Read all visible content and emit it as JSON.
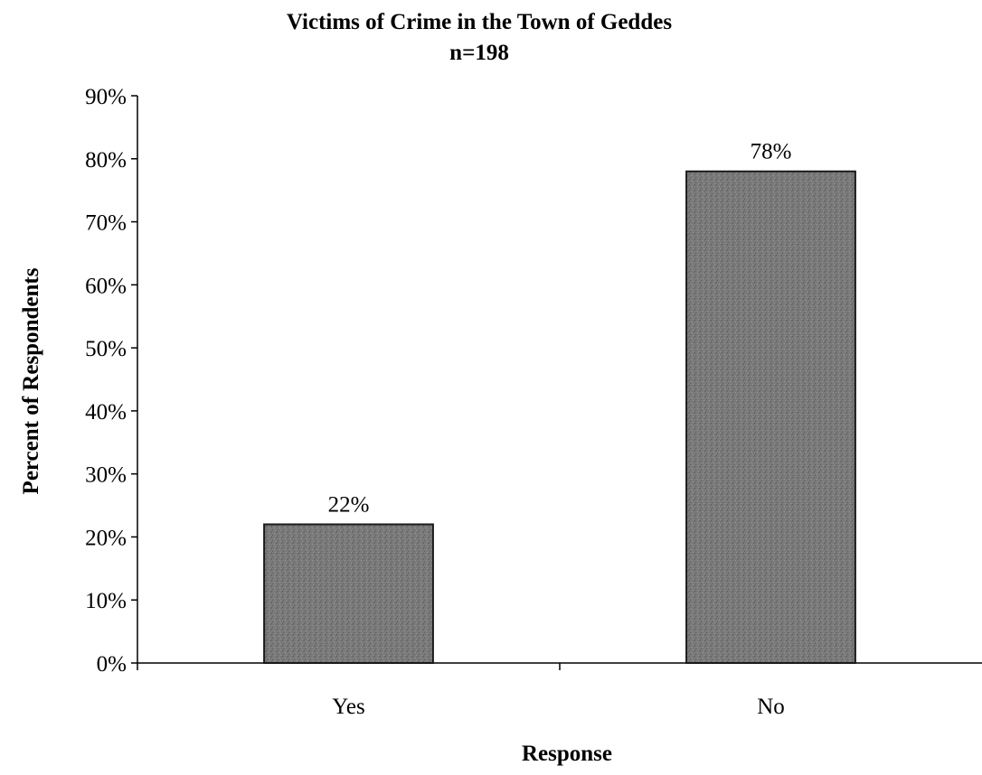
{
  "chart_data": {
    "type": "bar",
    "title": "Victims of Crime in the Town of Geddes",
    "subtitle": "n=198",
    "xlabel": "Response",
    "ylabel": "Percent of Respondents",
    "categories": [
      "Yes",
      "No"
    ],
    "values": [
      22,
      78
    ],
    "data_labels": [
      "22%",
      "78%"
    ],
    "ylim": [
      0,
      90
    ],
    "yticks": [
      0,
      10,
      20,
      30,
      40,
      50,
      60,
      70,
      80,
      90
    ],
    "ytick_labels": [
      "0%",
      "10%",
      "20%",
      "30%",
      "40%",
      "50%",
      "60%",
      "70%",
      "80%",
      "90%"
    ],
    "grid": false,
    "legend": "none",
    "bar_color": "#7a7a7a",
    "bar_edge_color": "#1a1a1a"
  }
}
